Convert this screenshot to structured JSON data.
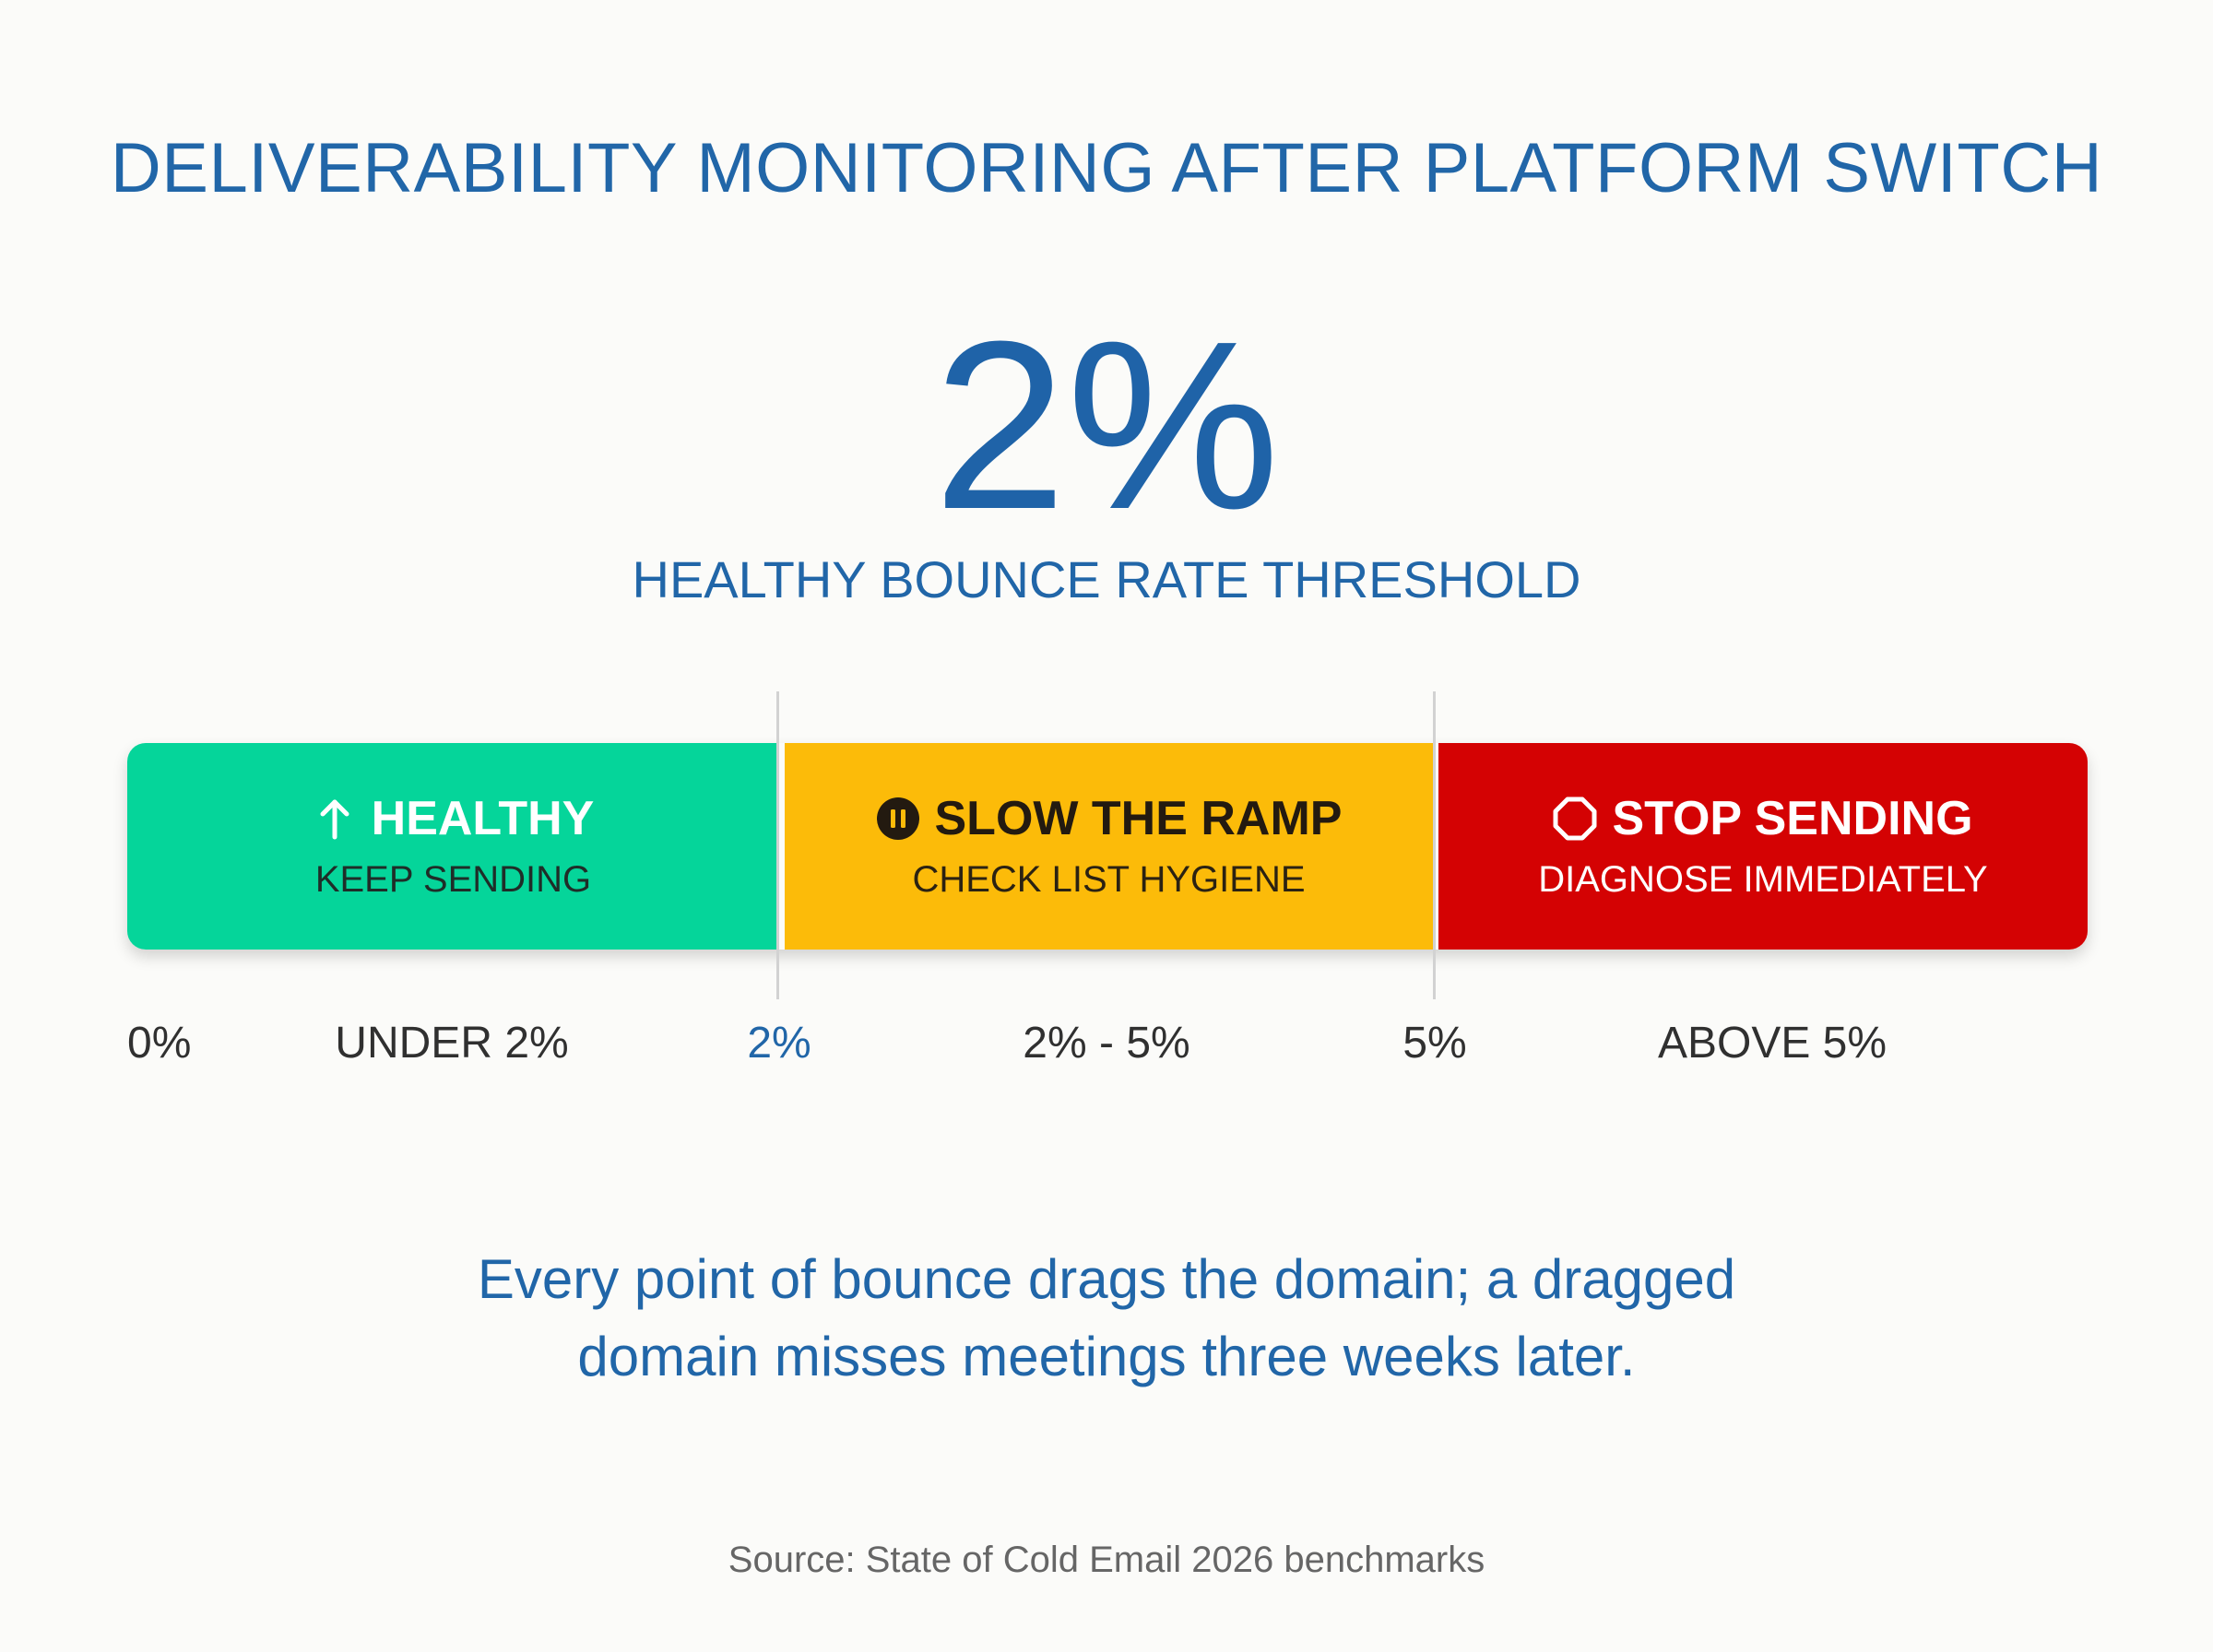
{
  "header": {
    "title": "DELIVERABILITY MONITORING AFTER PLATFORM SWITCH"
  },
  "hero": {
    "value": "2%",
    "caption": "HEALTHY BOUNCE RATE THRESHOLD"
  },
  "zones": [
    {
      "title": "HEALTHY",
      "subtitle": "KEEP SENDING",
      "icon": "arrow-up-icon",
      "color": "#05d59a"
    },
    {
      "title": "SLOW THE RAMP",
      "subtitle": "CHECK LIST HYGIENE",
      "icon": "pause-circle-icon",
      "color": "#fcbb09"
    },
    {
      "title": "STOP SENDING",
      "subtitle": "DIAGNOSE IMMEDIATELY",
      "icon": "octagon-stop-icon",
      "color": "#d40203"
    }
  ],
  "scale": {
    "start": "0%",
    "range_healthy": "UNDER 2%",
    "threshold_low": "2%",
    "range_slow": "2% - 5%",
    "threshold_high": "5%",
    "range_stop": "ABOVE 5%"
  },
  "quote": {
    "line1": "Every point of bounce drags the domain; a dragged",
    "line2": "domain misses meetings three weeks later."
  },
  "footer": {
    "source": "Source: State of Cold Email 2026 benchmarks"
  },
  "colors": {
    "accent_blue": "#2166a8",
    "background": "#fbfbf9"
  }
}
